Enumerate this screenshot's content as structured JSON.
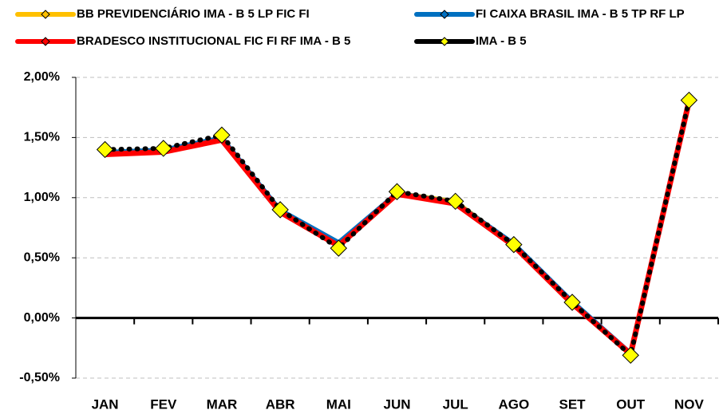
{
  "chart_data": {
    "type": "line",
    "categories": [
      "JAN",
      "FEV",
      "MAR",
      "ABR",
      "MAI",
      "JUN",
      "JUL",
      "AGO",
      "SET",
      "OUT",
      "NOV"
    ],
    "series": [
      {
        "name": "BB PREVIDENCIÁRIO IMA - B 5 LP FIC FI",
        "color": "#ffc000",
        "values": [
          1.37,
          1.39,
          1.49,
          0.89,
          0.61,
          1.04,
          0.97,
          0.61,
          0.13,
          -0.3,
          1.8
        ]
      },
      {
        "name": "FI CAIXA BRASIL IMA - B 5 TP RF LP",
        "color": "#0070c0",
        "values": [
          1.38,
          1.4,
          1.5,
          0.9,
          0.63,
          1.04,
          0.96,
          0.62,
          0.14,
          -0.29,
          1.8
        ]
      },
      {
        "name": "BRADESCO INSTITUCIONAL FIC FI RF IMA - B 5",
        "color": "#ff0000",
        "values": [
          1.36,
          1.38,
          1.48,
          0.88,
          0.6,
          1.03,
          0.95,
          0.6,
          0.12,
          -0.3,
          1.8
        ]
      },
      {
        "name": "IMA - B 5",
        "color": "#000000",
        "marker_color": "#ffff00",
        "values": [
          1.4,
          1.41,
          1.52,
          0.9,
          0.58,
          1.05,
          0.97,
          0.61,
          0.13,
          -0.31,
          1.81
        ]
      }
    ],
    "ylim": [
      -0.5,
      2.0
    ],
    "yticks": [
      {
        "value": -0.5,
        "label": "-0,50%"
      },
      {
        "value": 0,
        "label": "0,00%"
      },
      {
        "value": 0.5,
        "label": "0,50%"
      },
      {
        "value": 1.0,
        "label": "1,00%"
      },
      {
        "value": 1.5,
        "label": "1,50%"
      },
      {
        "value": 2.0,
        "label": "2,00%"
      }
    ],
    "grid": true
  }
}
